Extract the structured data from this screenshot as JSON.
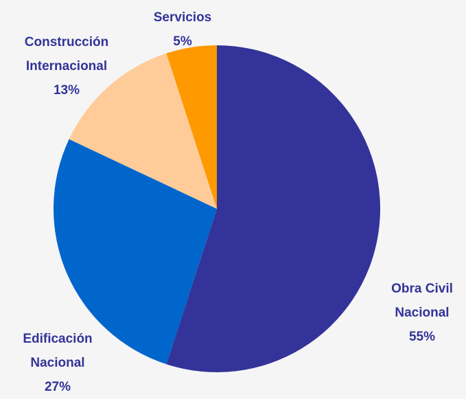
{
  "chart_data": {
    "type": "pie",
    "categories": [
      "Obra Civil Nacional",
      "Edificación Nacional",
      "Construcción Internacional",
      "Servicios"
    ],
    "values": [
      55,
      27,
      13,
      5
    ],
    "value_labels": [
      "55%",
      "27%",
      "13%",
      "5%"
    ],
    "colors": [
      "#333399",
      "#0066cc",
      "#ffcc99",
      "#ff9900"
    ]
  }
}
